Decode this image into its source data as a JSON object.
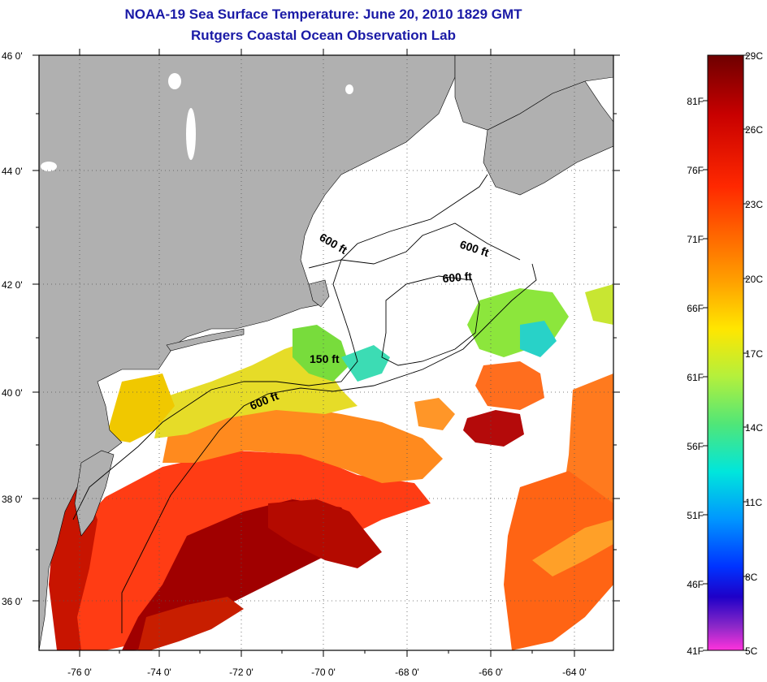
{
  "header": {
    "title_line1": "NOAA-19 Sea Surface Temperature:  June 20, 2010 1829 GMT",
    "title_line2": "Rutgers Coastal Ocean Observation Lab"
  },
  "map": {
    "lat_labels": [
      "46 0'",
      "44 0'",
      "42 0'",
      "40 0'",
      "38 0'",
      "36 0'"
    ],
    "lon_labels": [
      "-76 0'",
      "-74 0'",
      "-72 0'",
      "-70 0'",
      "-68 0'",
      "-66 0'",
      "-64 0'"
    ],
    "isobath_labels": [
      "600 ft",
      "600 ft",
      "600 ft",
      "150 ft",
      "600 ft"
    ],
    "colors": {
      "land": "#b0b0b0",
      "cloud": "#ffffff",
      "frame": "#000000"
    }
  },
  "colorbar": {
    "celsius_labels": [
      "29C",
      "26C",
      "23C",
      "20C",
      "17C",
      "14C",
      "11C",
      "8C",
      "5C"
    ],
    "fahrenheit_labels": [
      "81F",
      "76F",
      "71F",
      "66F",
      "61F",
      "56F",
      "51F",
      "46F",
      "41F"
    ],
    "colors": [
      "#6e0000",
      "#c80000",
      "#ff2800",
      "#ff6400",
      "#ffa000",
      "#ffe600",
      "#b4f03c",
      "#50e678",
      "#00e6dc",
      "#0096ff",
      "#0032ff",
      "#1e00c8",
      "#8c28c8",
      "#ff32dc"
    ]
  }
}
